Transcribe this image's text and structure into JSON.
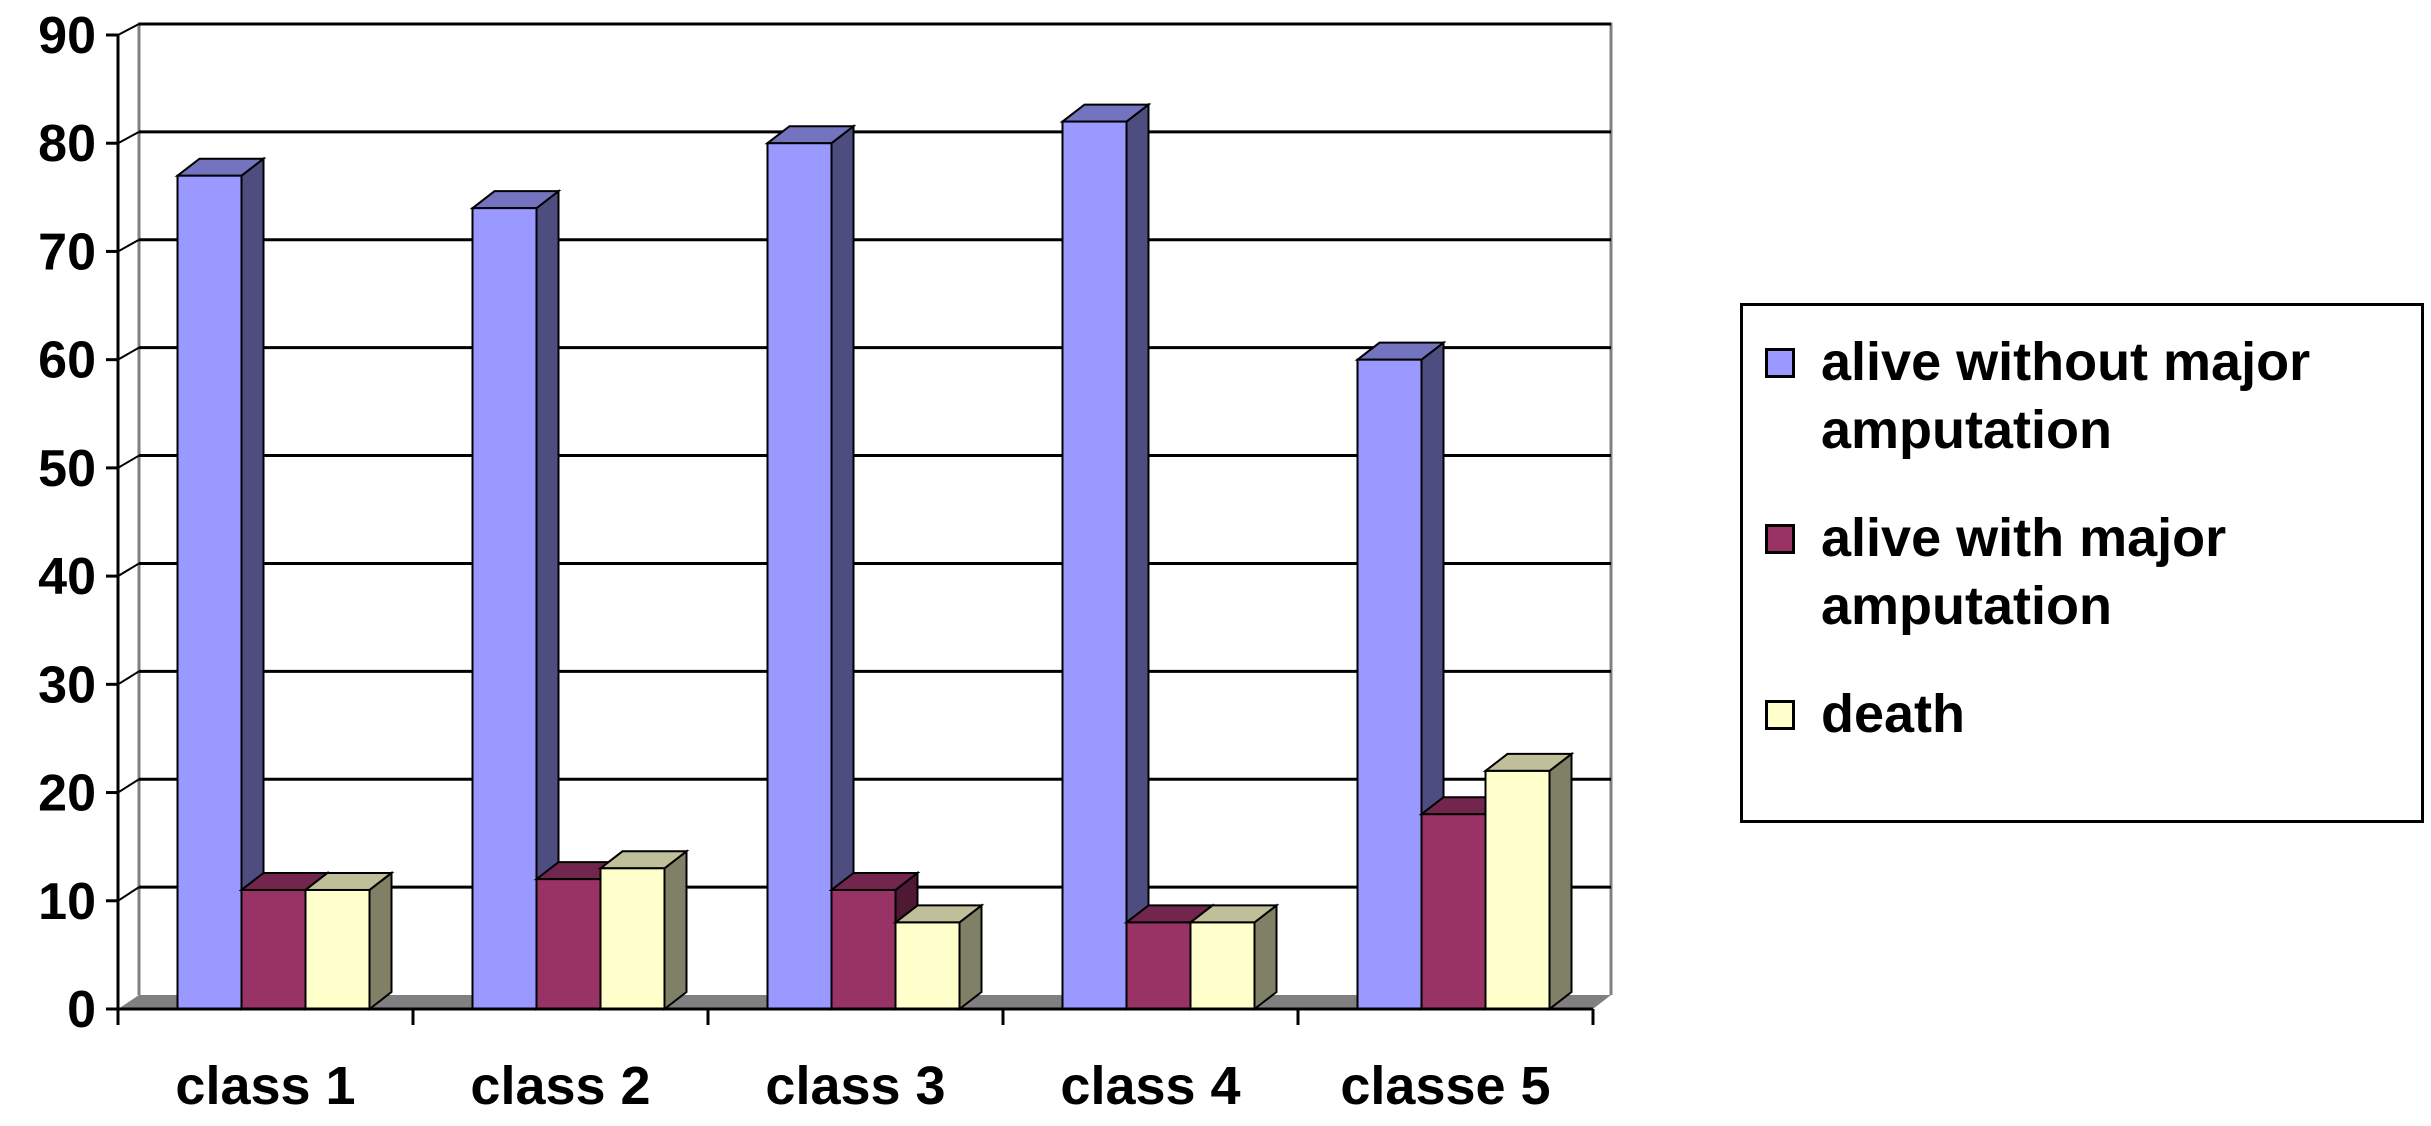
{
  "colors": {
    "series": [
      "#9999ff",
      "#993366",
      "#ffffcc"
    ],
    "series_side": [
      "#4d4d80",
      "#4d1933",
      "#808066"
    ],
    "series_top": [
      "#7373bf",
      "#73264d",
      "#bfbf99"
    ],
    "floor": "#808080",
    "grid": "#000000"
  },
  "chart_data": {
    "type": "bar",
    "style": "3d-clustered-column",
    "categories": [
      "class 1",
      "class 2",
      "class 3",
      "class 4",
      "classe 5"
    ],
    "series": [
      {
        "name": "alive without major amputation",
        "values": [
          77,
          74,
          80,
          82,
          60
        ]
      },
      {
        "name": "alive with major amputation",
        "values": [
          11,
          12,
          11,
          8,
          18
        ]
      },
      {
        "name": "death",
        "values": [
          11,
          13,
          8,
          8,
          22
        ]
      }
    ],
    "title": "",
    "xlabel": "",
    "ylabel": "",
    "ylim": [
      0,
      90
    ],
    "yticks": [
      "0",
      "10",
      "20",
      "30",
      "40",
      "50",
      "60",
      "70",
      "80",
      "90"
    ],
    "grid": true,
    "legend_position": "right"
  }
}
